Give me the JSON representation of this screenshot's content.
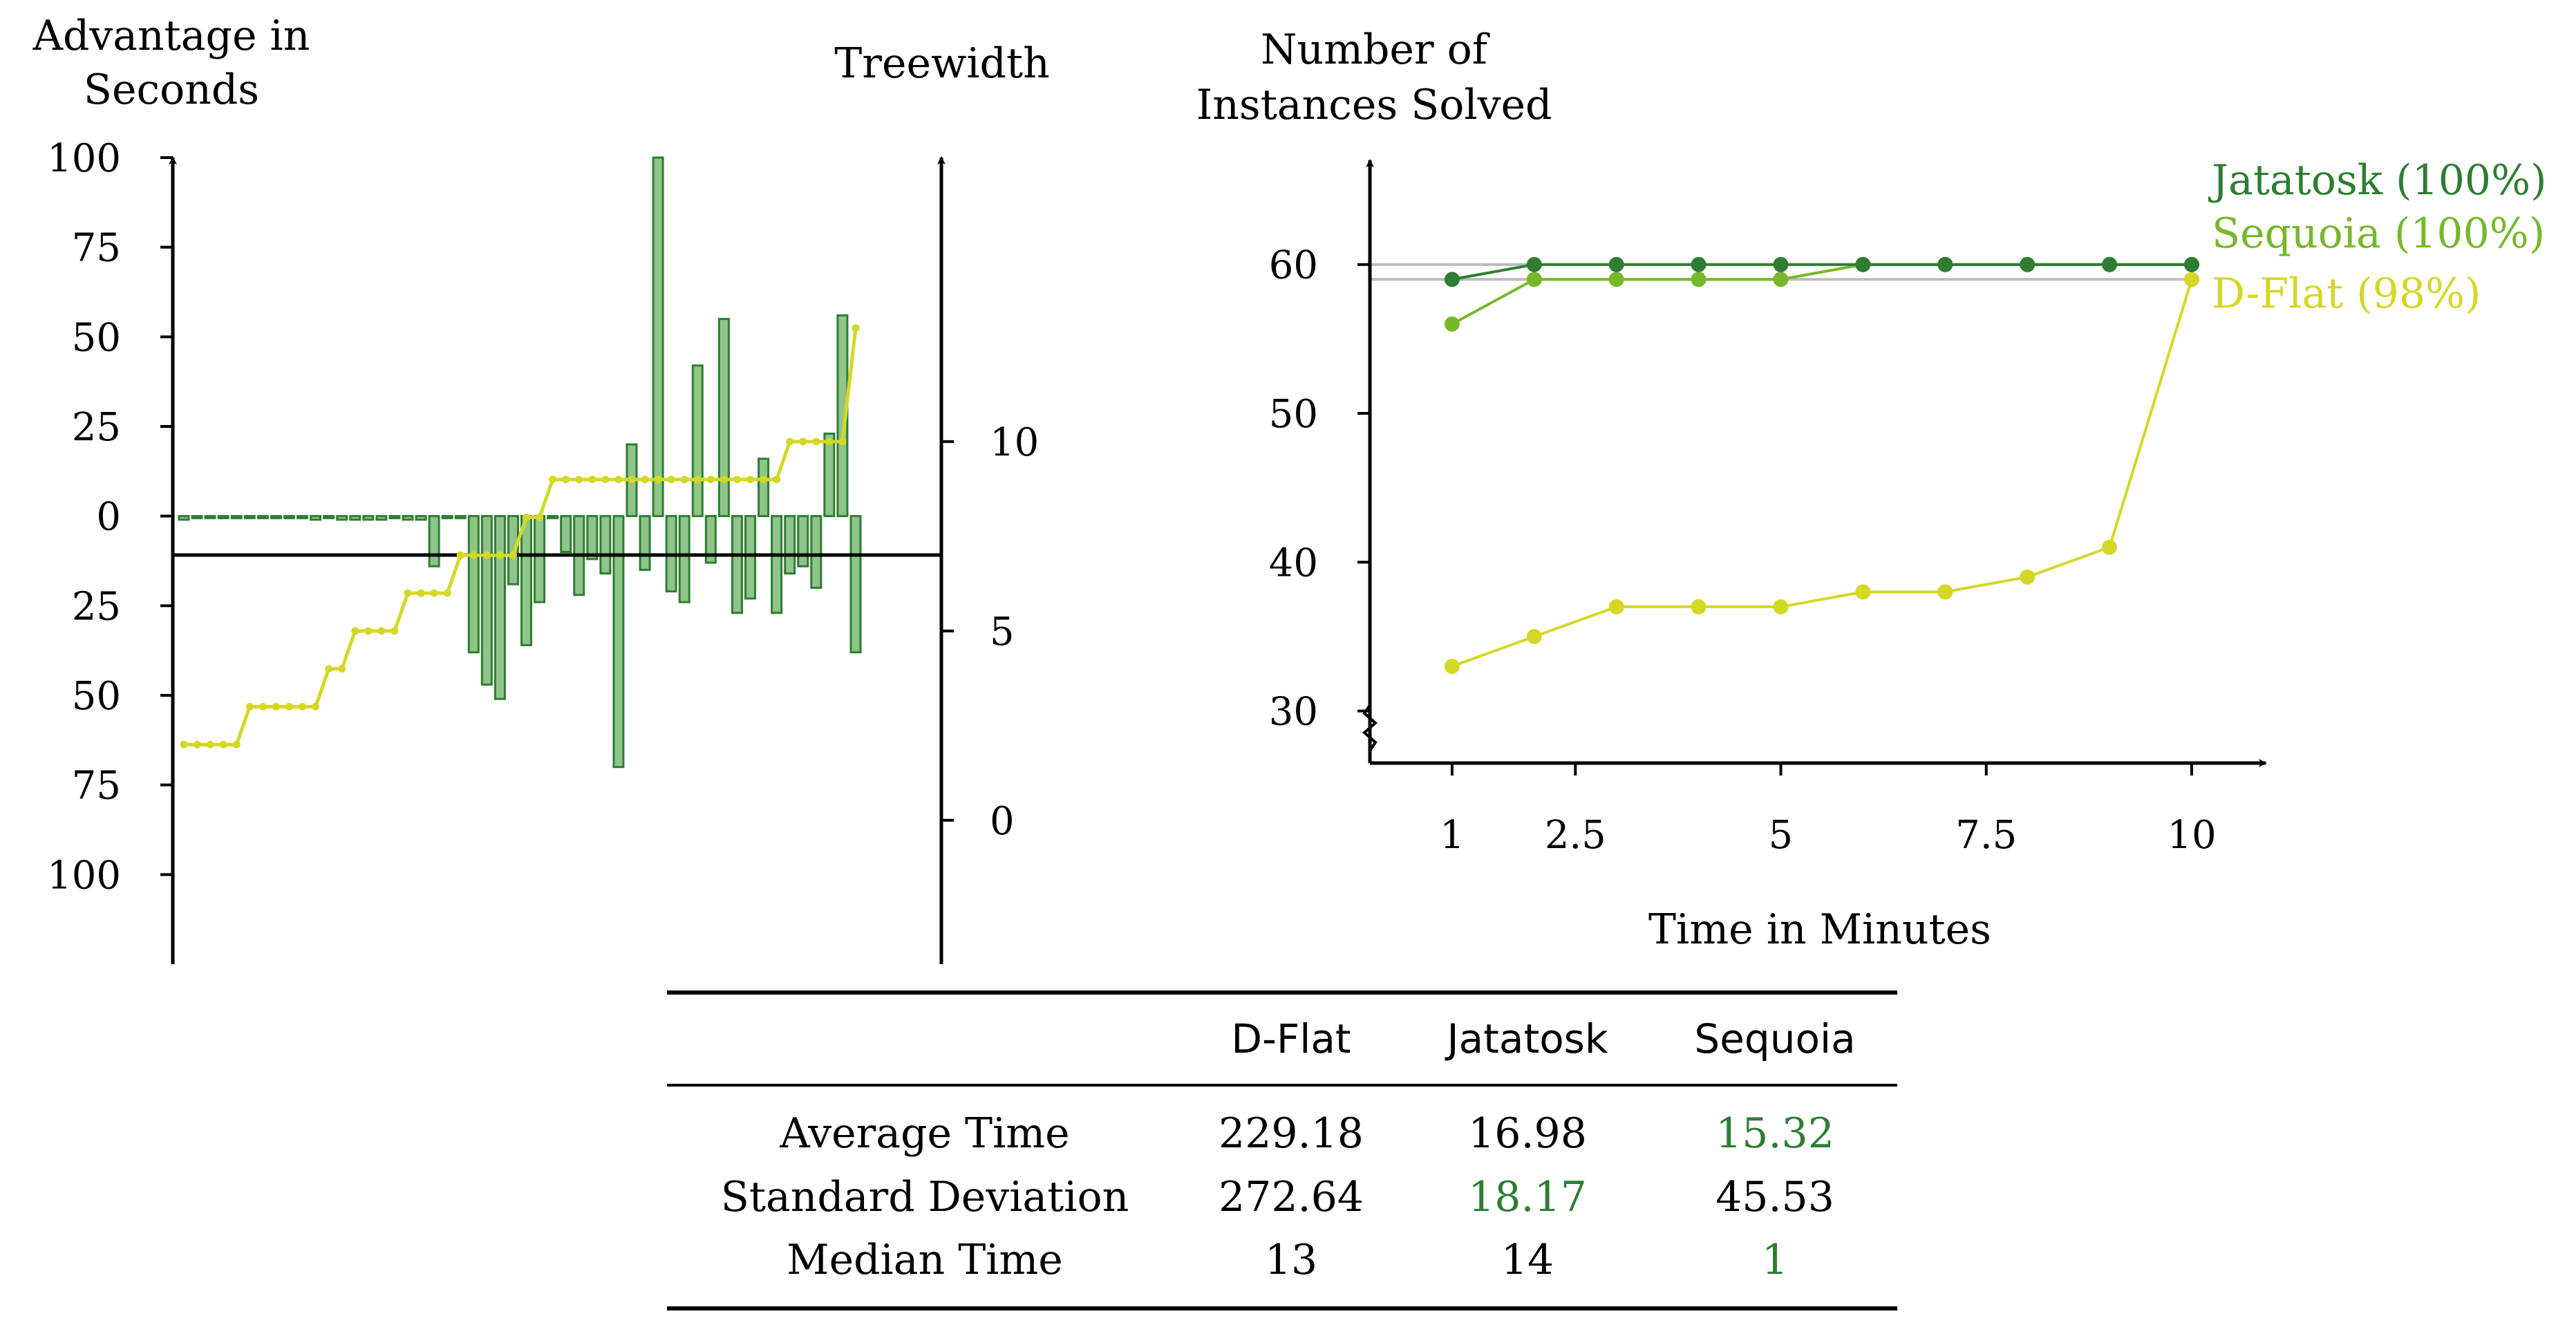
{
  "colors": {
    "jatatosk": "#2e7d32",
    "sequoia": "#76b82a",
    "dflat": "#d4d825",
    "bar_fill": "#8fc48a",
    "bar_stroke": "#2e7d32",
    "highlight": "#2e7d32",
    "grid": "#bbbbbb"
  },
  "chart_data": [
    {
      "type": "bar",
      "ylabel": "Advantage in Seconds",
      "ylabel_lines": [
        "Advantage in",
        "Seconds"
      ],
      "y_ticks": [
        100,
        75,
        50,
        25,
        0,
        -25,
        -50,
        -75,
        -100
      ],
      "y_tick_labels": [
        "100",
        "75",
        "50",
        "25",
        "0",
        "25",
        "50",
        "75",
        "100"
      ],
      "ylim": [
        -125,
        100
      ],
      "values": [
        -1,
        0,
        0,
        0,
        0,
        0,
        0,
        0,
        0,
        0,
        -1,
        0,
        -1,
        -1,
        -1,
        -1,
        0,
        -1,
        -1,
        -14,
        0,
        0,
        -38,
        -47,
        -51,
        -19,
        -36,
        -24,
        0,
        -10,
        -22,
        -12,
        -16,
        -70,
        20,
        -15,
        100,
        -21,
        -24,
        42,
        -13,
        55,
        -27,
        -23,
        16,
        -27,
        -16,
        -14,
        -20,
        23,
        56,
        -38
      ],
      "secondary": {
        "type": "line",
        "label": "Treewidth",
        "y_ticks": [
          10,
          5,
          0
        ],
        "ylim": [
          -3.8,
          17.5
        ],
        "values": [
          2,
          2,
          2,
          2,
          2,
          3,
          3,
          3,
          3,
          3,
          3,
          4,
          4,
          5,
          5,
          5,
          5,
          6,
          6,
          6,
          6,
          7,
          7,
          7,
          7,
          7,
          8,
          8,
          9,
          9,
          9,
          9,
          9,
          9,
          9,
          9,
          9,
          9,
          9,
          9,
          9,
          9,
          9,
          9,
          9,
          9,
          10,
          10,
          10,
          10,
          10,
          13
        ]
      }
    },
    {
      "type": "line",
      "xlabel": "Time in Minutes",
      "ylabel": "Number of Instances Solved",
      "ylabel_lines": [
        "Number of",
        "Instances Solved"
      ],
      "x_ticks": [
        1,
        2.5,
        5,
        7.5,
        10
      ],
      "x_tick_labels": [
        "1",
        "2.5",
        "5",
        "7.5",
        "10"
      ],
      "xlim": [
        0,
        10.9
      ],
      "y_ticks": [
        30,
        40,
        50,
        60
      ],
      "ylim": [
        26.5,
        67
      ],
      "reference_lines": [
        60,
        59
      ],
      "x": [
        1,
        2,
        3,
        4,
        5,
        6,
        7,
        8,
        9,
        10
      ],
      "series": [
        {
          "name": "Jatatosk (100%)",
          "values": [
            59,
            60,
            60,
            60,
            60,
            60,
            60,
            60,
            60,
            60
          ]
        },
        {
          "name": "Sequoia (100%)",
          "values": [
            56,
            59,
            59,
            59,
            59,
            60,
            60,
            60,
            60,
            60
          ]
        },
        {
          "name": "D-Flat (98%)",
          "values": [
            33,
            35,
            37,
            37,
            37,
            38,
            38,
            39,
            41,
            59
          ]
        }
      ]
    },
    {
      "type": "table",
      "columns": [
        "",
        "D-Flat",
        "Jatatosk",
        "Sequoia"
      ],
      "rows": [
        {
          "label": "Average Time",
          "cells": [
            "229.18",
            "16.98",
            "15.32"
          ],
          "best": 2
        },
        {
          "label": "Standard Deviation",
          "cells": [
            "272.64",
            "18.17",
            "45.53"
          ],
          "best": 1
        },
        {
          "label": "Median Time",
          "cells": [
            "13",
            "14",
            "1"
          ],
          "best": 2
        }
      ]
    }
  ]
}
